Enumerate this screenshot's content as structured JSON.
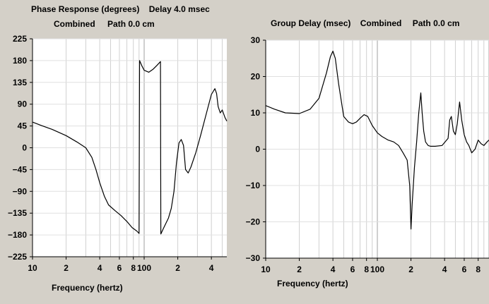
{
  "phase_panel": {
    "title_line1": "Phase Response (degrees)",
    "delay_label": "Delay 4.0 msec",
    "title_line2": "Combined",
    "path_label": "Path 0.0 cm",
    "xlabel": "Frequency (hertz)"
  },
  "delay_panel": {
    "title_line1": "Group Delay (msec)",
    "combined_label": "Combined",
    "path_label": "Path 0.0 cm",
    "xlabel": "Frequency (hertz)"
  },
  "chart_data": [
    {
      "type": "line",
      "title": "Phase Response (degrees)",
      "xlabel": "Frequency (hertz)",
      "ylabel": "",
      "x_scale": "log",
      "xlim": [
        10,
        550
      ],
      "ylim": [
        -225,
        225
      ],
      "y_ticks": [
        225,
        180,
        135,
        90,
        45,
        0,
        -45,
        -90,
        -135,
        -180,
        -225
      ],
      "x_tick_labels": [
        {
          "x": 10,
          "label": "10"
        },
        {
          "x": 20,
          "label": "2"
        },
        {
          "x": 40,
          "label": "4"
        },
        {
          "x": 60,
          "label": "6"
        },
        {
          "x": 80,
          "label": "8"
        },
        {
          "x": 100,
          "label": "100"
        },
        {
          "x": 200,
          "label": "2"
        },
        {
          "x": 400,
          "label": "4"
        }
      ],
      "grid": true,
      "series": [
        {
          "x": [
            10,
            12,
            15,
            20,
            25,
            30,
            34,
            37,
            40,
            44,
            48,
            55,
            62,
            70,
            78,
            86,
            90,
            91,
            95,
            100,
            110,
            120,
            130,
            140,
            141,
            150,
            165,
            175,
            185,
            195,
            205,
            215,
            225,
            235,
            248,
            262,
            290,
            320,
            360,
            400,
            430,
            445,
            460,
            480,
            500,
            530,
            550
          ],
          "y": [
            53,
            46,
            38,
            25,
            12,
            0,
            -20,
            -45,
            -72,
            -100,
            -118,
            -130,
            -140,
            -152,
            -165,
            -172,
            -177,
            180,
            170,
            160,
            156,
            162,
            170,
            178,
            -178,
            -165,
            -145,
            -125,
            -90,
            -30,
            10,
            17,
            5,
            -45,
            -52,
            -40,
            -10,
            25,
            70,
            110,
            122,
            112,
            85,
            72,
            78,
            62,
            55
          ]
        }
      ]
    },
    {
      "type": "line",
      "title": "Group Delay (msec)",
      "xlabel": "Frequency (hertz)",
      "ylabel": "",
      "x_scale": "log",
      "xlim": [
        10,
        1000
      ],
      "ylim": [
        -30,
        30
      ],
      "y_ticks": [
        30,
        20,
        10,
        0,
        -10,
        -20,
        -30
      ],
      "x_tick_labels": [
        {
          "x": 10,
          "label": "10"
        },
        {
          "x": 20,
          "label": "2"
        },
        {
          "x": 40,
          "label": "4"
        },
        {
          "x": 60,
          "label": "6"
        },
        {
          "x": 80,
          "label": "8"
        },
        {
          "x": 100,
          "label": "100"
        },
        {
          "x": 200,
          "label": "2"
        },
        {
          "x": 400,
          "label": "4"
        },
        {
          "x": 600,
          "label": "6"
        },
        {
          "x": 800,
          "label": "8"
        }
      ],
      "grid": true,
      "series": [
        {
          "x": [
            10,
            12,
            15,
            20,
            25,
            30,
            35,
            38,
            40,
            42,
            45,
            50,
            55,
            60,
            65,
            70,
            76,
            82,
            90,
            100,
            110,
            125,
            140,
            155,
            170,
            185,
            195,
            200,
            205,
            215,
            225,
            235,
            245,
            252,
            260,
            270,
            285,
            300,
            330,
            380,
            430,
            445,
            460,
            480,
            500,
            520,
            545,
            570,
            600,
            630,
            660,
            700,
            750,
            800,
            850,
            900,
            960,
            1000
          ],
          "y": [
            12,
            11,
            10,
            9.8,
            11,
            14,
            21,
            25.5,
            27,
            25,
            18,
            9,
            7.5,
            7,
            7.5,
            8.5,
            9.5,
            9,
            6.5,
            4.5,
            3.5,
            2.5,
            2,
            1,
            -1,
            -3,
            -10,
            -22,
            -15,
            -5,
            2,
            10,
            15.5,
            10,
            5,
            2,
            1,
            0.8,
            0.8,
            1,
            3,
            8,
            9,
            5,
            4,
            7,
            13,
            8,
            4,
            2,
            1,
            -1,
            0,
            2.5,
            1.5,
            1,
            2,
            2.5
          ]
        }
      ]
    }
  ]
}
